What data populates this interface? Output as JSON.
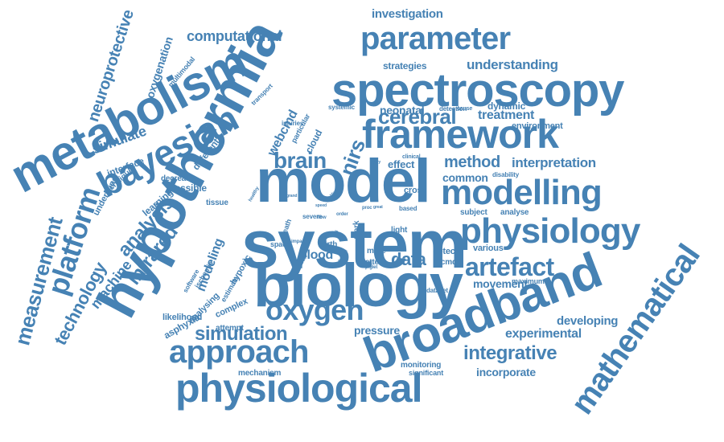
{
  "color": "#4682b4",
  "words": [
    "system",
    "hypothermia",
    "biology",
    "model",
    "broadband",
    "metabolism",
    "spectroscopy",
    "physiological",
    "framework",
    "bayesian",
    "mathematical",
    "physiology",
    "modelling",
    "approach",
    "parameter",
    "oxygen",
    "platform",
    "artefact",
    "measurement",
    "technology",
    "simulation",
    "cerebral",
    "nirs",
    "brain",
    "integrative",
    "neuroprotective",
    "computational",
    "method",
    "interpretation",
    "understanding",
    "infrared",
    "experimental",
    "analysis",
    "simulate",
    "data",
    "investigation",
    "machine",
    "oxygenation",
    "incorporate",
    "developing",
    "neonatal",
    "blood",
    "pressure",
    "treatment",
    "modeling",
    "movement",
    "common",
    "strategies",
    "effect",
    "dynamic",
    "environment",
    "webcmd",
    "different",
    "interface",
    "learning",
    "underlying",
    "technique",
    "multimodal",
    "possible",
    "tissue",
    "decrease",
    "likelihood",
    "asphyxia",
    "analysing",
    "attempt",
    "complex",
    "software",
    "ischemic",
    "estimate",
    "hypoxic",
    "mechanism",
    "monitoring",
    "significant",
    "cloud",
    "particular",
    "injuries",
    "systemic",
    "transport",
    "detection",
    "cross",
    "disability",
    "subject",
    "analyse",
    "various",
    "maximum",
    "detect",
    "bcmd",
    "dataset",
    "better",
    "more",
    "birth",
    "death",
    "space",
    "light",
    "work",
    "severe",
    "order",
    "based",
    "cause",
    "clinical",
    "injury",
    "flow",
    "proc",
    "great",
    "speed",
    "result",
    "change",
    "impact",
    "sig",
    "healthy",
    "blend",
    "grand",
    "piglet"
  ]
}
